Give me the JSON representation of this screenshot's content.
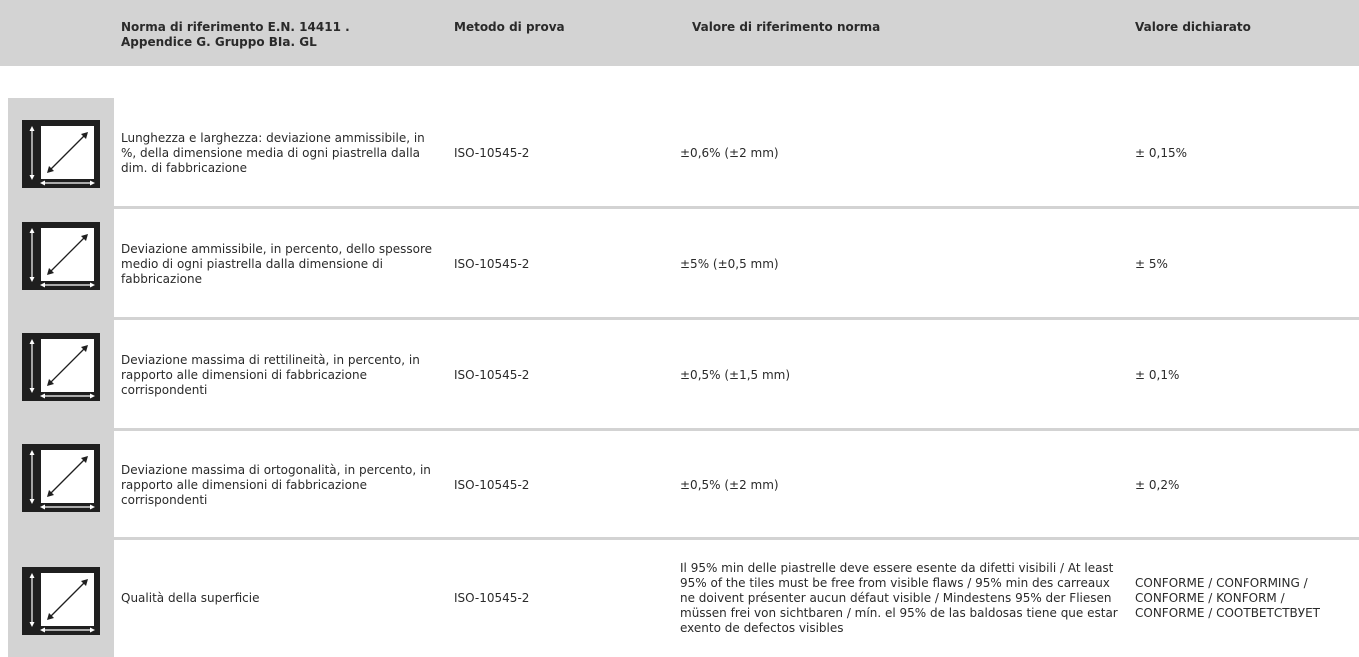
{
  "header": {
    "col1": "Norma di riferimento E.N. 14411 . Appendice G. Gruppo BIa. GL",
    "col2": "Metodo di prova",
    "col3": "Valore di riferimento norma",
    "col4": "Valore dichiarato"
  },
  "icon": {
    "name": "dimensions-icon",
    "colors": {
      "frame": "#1f1f1f",
      "inner": "#ffffff"
    }
  },
  "rows": [
    {
      "description": "Lunghezza e larghezza: deviazione ammissibile, in %, della dimensione media di ogni piastrella dalla dim. di fabbricazione",
      "method": "ISO-10545-2",
      "reference": "±0,6% (±2 mm)",
      "declared": "± 0,15%"
    },
    {
      "description": "Deviazione ammissibile, in percento, dello spessore medio di ogni piastrella dalla dimensione di fabbricazione",
      "method": "ISO-10545-2",
      "reference": "±5% (±0,5 mm)",
      "declared": "± 5%"
    },
    {
      "description": "Deviazione massima di rettilineità, in percento, in rapporto alle dimensioni di fabbricazione corrispondenti",
      "method": "ISO-10545-2",
      "reference": "±0,5% (±1,5 mm)",
      "declared": "± 0,1%"
    },
    {
      "description": "Deviazione massima di ortogonalità, in percento, in rapporto alle dimensioni di fabbricazione corrispondenti",
      "method": "ISO-10545-2",
      "reference": "±0,5% (±2 mm)",
      "declared": "± 0,2%"
    },
    {
      "description": "Qualità della superficie",
      "method": "ISO-10545-2",
      "reference": "Il 95% min delle piastrelle deve essere esente da difetti visibili / At least 95% of the tiles must be free from visible flaws / 95% min des carreaux ne doivent présenter aucun défaut visible / Mindestens 95% der Fliesen müssen frei von sichtbaren / mín. el 95% de las baldosas tiene que estar exento de defectos visibles",
      "declared": "CONFORME / CONFORMING / CONFORME / KONFORM / CONFORME / СООТВЕТСТВУЕТ"
    }
  ]
}
